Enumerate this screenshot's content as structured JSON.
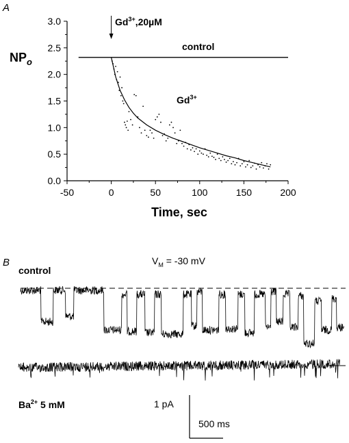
{
  "chart_data": [
    {
      "panel_label": "A",
      "type": "scatter",
      "xlabel": "Time, sec",
      "ylabel": "NP",
      "ylabel_sub": "o",
      "xlim": [
        -50,
        200
      ],
      "ylim": [
        0,
        3.0
      ],
      "x_ticks": [
        "-50",
        "0",
        "50",
        "100",
        "150",
        "200"
      ],
      "y_ticks": [
        "0.0",
        "0.5",
        "1.0",
        "1.5",
        "2.0",
        "2.5",
        "3.0"
      ],
      "arrow_annotation": {
        "x": 0,
        "text": "Gd",
        "sup": "3+",
        "after": ",20µM"
      },
      "control_label": "control",
      "gd_label": "Gd",
      "gd_label_sup": "3+",
      "control_line": {
        "x_start": -37,
        "x_end": 200,
        "y": 2.32
      },
      "fit_curve": {
        "x": [
          0,
          5,
          10,
          15,
          20,
          25,
          30,
          40,
          50,
          60,
          70,
          80,
          90,
          100,
          110,
          120,
          130,
          140,
          150,
          160,
          170,
          180
        ],
        "y": [
          2.32,
          1.95,
          1.7,
          1.52,
          1.38,
          1.27,
          1.18,
          1.05,
          0.95,
          0.87,
          0.8,
          0.74,
          0.68,
          0.62,
          0.57,
          0.52,
          0.47,
          0.43,
          0.38,
          0.34,
          0.3,
          0.26
        ]
      },
      "points": {
        "x": [
          1,
          2,
          3,
          4,
          5,
          6,
          7,
          8,
          9,
          10,
          11,
          12,
          13,
          14,
          15,
          16,
          17,
          18,
          19,
          20,
          22,
          24,
          26,
          28,
          30,
          32,
          34,
          36,
          38,
          40,
          42,
          44,
          46,
          48,
          50,
          52,
          54,
          56,
          58,
          60,
          62,
          64,
          66,
          68,
          70,
          72,
          74,
          76,
          78,
          80,
          82,
          84,
          86,
          88,
          90,
          92,
          94,
          96,
          98,
          100,
          102,
          104,
          106,
          108,
          110,
          112,
          114,
          116,
          118,
          120,
          122,
          124,
          126,
          128,
          130,
          132,
          134,
          136,
          138,
          140,
          142,
          144,
          146,
          148,
          150,
          152,
          154,
          156,
          158,
          160,
          162,
          164,
          166,
          168,
          170,
          172,
          174,
          176,
          178,
          180
        ],
        "y": [
          2.25,
          2.2,
          2.1,
          2.0,
          2.15,
          1.9,
          2.05,
          1.85,
          1.7,
          1.95,
          1.6,
          1.75,
          1.5,
          1.45,
          1.1,
          1.05,
          1.0,
          1.12,
          0.95,
          1.3,
          1.15,
          1.05,
          1.62,
          1.6,
          1.2,
          1.0,
          0.9,
          1.4,
          0.95,
          0.85,
          0.82,
          0.95,
          0.9,
          0.8,
          1.15,
          1.2,
          1.25,
          1.1,
          0.85,
          0.88,
          0.75,
          0.8,
          1.05,
          1.1,
          1.0,
          0.9,
          0.7,
          0.75,
          0.95,
          0.7,
          0.65,
          0.72,
          0.6,
          0.68,
          0.58,
          0.62,
          0.55,
          0.6,
          0.5,
          0.56,
          0.52,
          0.5,
          0.6,
          0.48,
          0.45,
          0.52,
          0.46,
          0.44,
          0.4,
          0.5,
          0.42,
          0.38,
          0.45,
          0.4,
          0.35,
          0.38,
          0.42,
          0.32,
          0.36,
          0.3,
          0.34,
          0.42,
          0.28,
          0.32,
          0.36,
          0.26,
          0.3,
          0.38,
          0.25,
          0.28,
          0.33,
          0.22,
          0.3,
          0.26,
          0.34,
          0.24,
          0.28,
          0.32,
          0.22,
          0.3
        ]
      }
    },
    {
      "panel_label": "B",
      "type": "line",
      "control_label": "control",
      "voltage_label": "V",
      "voltage_sub": "M",
      "voltage_value": " = -30 mV",
      "ba_label": "Ba",
      "ba_sup": "2+",
      "ba_value": " 5 mM",
      "scale_y_label": "1 pA",
      "scale_x_label": "500 ms"
    }
  ]
}
